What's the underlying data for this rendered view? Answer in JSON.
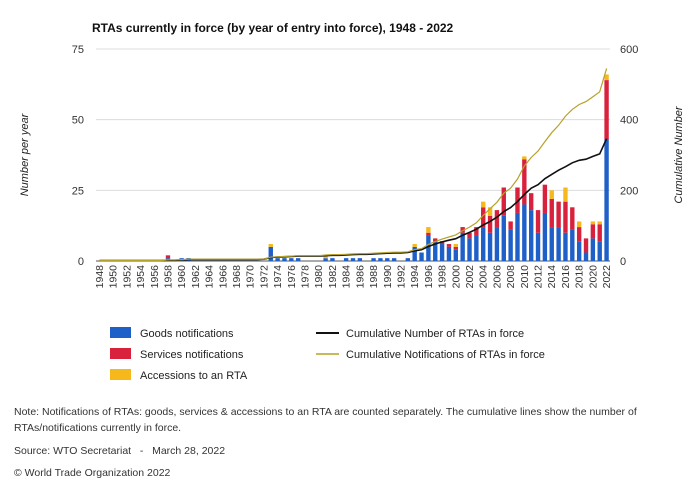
{
  "chart_data": {
    "type": "bar",
    "title": "RTAs currently in force (by year of entry into force), 1948 - 2022",
    "ylabel": "Number per year",
    "y2label": "Cumulative Number",
    "ylim": [
      0,
      75
    ],
    "y2lim": [
      0,
      600
    ],
    "yticks": [
      0,
      25,
      50,
      75
    ],
    "y2ticks": [
      0,
      200,
      400,
      600
    ],
    "x_start": 1948,
    "x_end": 2022,
    "xtick_step": 2,
    "legend_position": "bottom",
    "series": [
      {
        "name": "Goods notifications",
        "kind": "bar",
        "color": "#1f5fc8",
        "values": [
          0,
          0,
          0,
          0,
          0,
          0,
          0,
          0,
          0,
          0,
          1,
          0,
          1,
          1,
          0,
          0,
          0,
          0,
          0,
          0,
          0,
          0,
          0,
          0,
          0,
          5,
          1,
          1,
          1,
          1,
          0,
          0,
          0,
          1,
          1,
          0,
          1,
          1,
          1,
          0,
          1,
          1,
          1,
          1,
          0,
          1,
          5,
          3,
          9,
          7,
          6,
          5,
          4,
          10,
          8,
          9,
          12,
          10,
          12,
          16,
          11,
          17,
          20,
          18,
          10,
          17,
          12,
          12,
          10,
          11,
          7,
          3,
          8,
          7,
          43
        ]
      },
      {
        "name": "Services notifications",
        "kind": "bar",
        "color": "#d8213c",
        "values": [
          0,
          0,
          0,
          0,
          0,
          0,
          0,
          0,
          0,
          0,
          1,
          0,
          0,
          0,
          0,
          0,
          0,
          0,
          0,
          0,
          0,
          0,
          0,
          0,
          0,
          0,
          0,
          0,
          0,
          0,
          0,
          0,
          0,
          0,
          0,
          0,
          0,
          0,
          0,
          0,
          0,
          0,
          0,
          0,
          0,
          0,
          0,
          0,
          1,
          1,
          1,
          1,
          1,
          2,
          2,
          3,
          7,
          6,
          6,
          10,
          3,
          9,
          16,
          6,
          8,
          10,
          10,
          9,
          11,
          8,
          5,
          5,
          5,
          6,
          21
        ]
      },
      {
        "name": "Accessions to an RTA",
        "kind": "bar",
        "color": "#f6b81b",
        "values": [
          0,
          0,
          0,
          0,
          0,
          0,
          0,
          0,
          0,
          0,
          0,
          0,
          0,
          0,
          0,
          0,
          0,
          0,
          0,
          0,
          0,
          0,
          0,
          0,
          0,
          1,
          0,
          0,
          0,
          0,
          0,
          0,
          0,
          1,
          0,
          0,
          0,
          0,
          0,
          0,
          0,
          0,
          0,
          0,
          0,
          0,
          1,
          0,
          2,
          0,
          0,
          0,
          1,
          0,
          0,
          0,
          2,
          3,
          0,
          0,
          0,
          0,
          1,
          0,
          0,
          0,
          3,
          0,
          5,
          0,
          2,
          0,
          1,
          1,
          2
        ]
      },
      {
        "name": "Cumulative Number of RTAs in force",
        "kind": "line",
        "axis": "secondary",
        "color": "#111111",
        "values": [
          1,
          1,
          1,
          1,
          1,
          1,
          1,
          1,
          1,
          1,
          2,
          2,
          3,
          4,
          4,
          4,
          4,
          4,
          4,
          4,
          4,
          4,
          4,
          4,
          5,
          10,
          11,
          12,
          13,
          14,
          14,
          14,
          14,
          15,
          16,
          16,
          17,
          18,
          19,
          19,
          20,
          21,
          22,
          23,
          23,
          24,
          29,
          32,
          41,
          48,
          54,
          59,
          63,
          73,
          81,
          90,
          102,
          112,
          124,
          140,
          151,
          168,
          188,
          206,
          216,
          233,
          245,
          257,
          267,
          278,
          285,
          288,
          296,
          303,
          346
        ]
      },
      {
        "name": "Cumulative Notifications of RTAs in force",
        "kind": "line",
        "axis": "secondary",
        "color": "#b5a22a",
        "values": [
          1,
          1,
          1,
          1,
          1,
          1,
          1,
          1,
          1,
          1,
          3,
          3,
          4,
          5,
          5,
          5,
          5,
          5,
          5,
          5,
          5,
          5,
          5,
          5,
          5,
          11,
          12,
          13,
          14,
          15,
          15,
          15,
          15,
          17,
          18,
          18,
          19,
          20,
          21,
          21,
          22,
          23,
          24,
          25,
          25,
          26,
          32,
          35,
          47,
          55,
          62,
          68,
          74,
          86,
          96,
          108,
          129,
          148,
          166,
          192,
          206,
          232,
          269,
          293,
          311,
          338,
          363,
          384,
          410,
          429,
          443,
          451,
          465,
          479,
          545
        ]
      }
    ]
  },
  "footer": {
    "note": "Note: Notifications of RTAs: goods, services & accessions to an RTA are counted separately. The cumulative lines show the number of RTAs/notifications currently in force.",
    "source": "Source: WTO Secretariat   -   March 28, 2022",
    "copyright": "© World Trade Organization 2022"
  }
}
